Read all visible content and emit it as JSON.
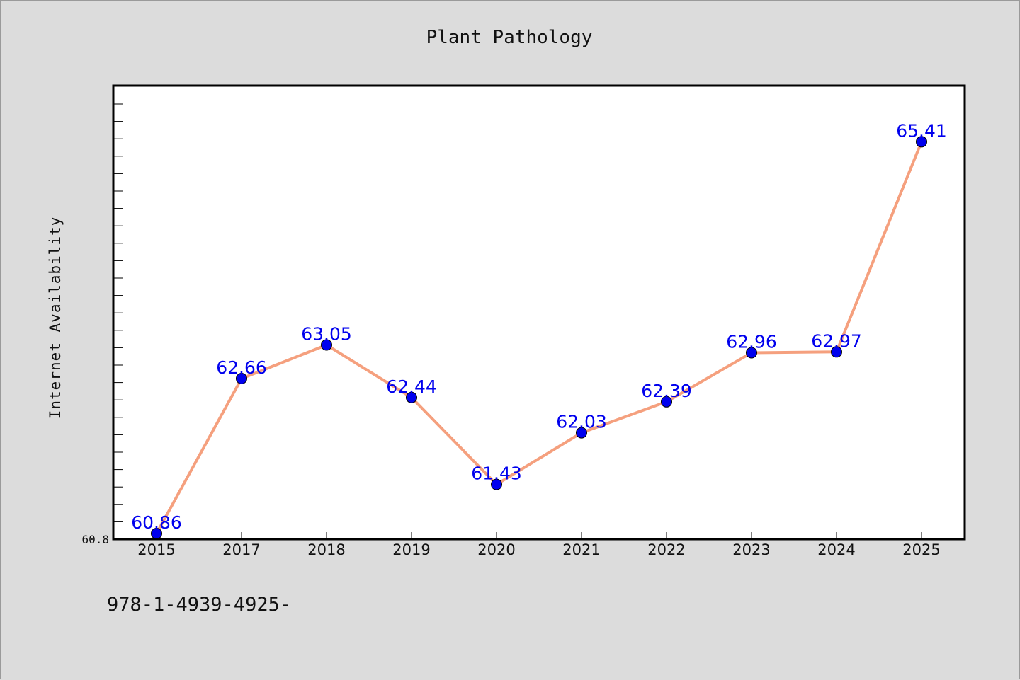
{
  "chart_data": {
    "type": "line",
    "title": "Plant Pathology",
    "ylabel": "Internet Availability",
    "xlabel": "",
    "categories": [
      "2015",
      "2017",
      "2018",
      "2019",
      "2020",
      "2021",
      "2022",
      "2023",
      "2024",
      "2025"
    ],
    "series": [
      {
        "values": [
          60.86,
          62.66,
          63.05,
          62.44,
          61.43,
          62.03,
          62.39,
          62.96,
          62.97,
          65.41
        ],
        "data_labels": [
          "60.86",
          "62.66",
          "63.05",
          "62.44",
          "61.43",
          "62.03",
          "62.39",
          "62.96",
          "62.97",
          "65.41"
        ]
      }
    ],
    "y_tick_labels": [
      "60.8"
    ],
    "ylim": [
      60.8,
      66.0
    ],
    "grid": false,
    "legend": "none",
    "colors": {
      "line": "#f5a07e",
      "marker": "#0000ee",
      "data_label": "#0000ee",
      "plot_background": "#ffffff",
      "figure_background": "#dcdcdc"
    }
  },
  "footer_text": "978-1-4939-4925-"
}
